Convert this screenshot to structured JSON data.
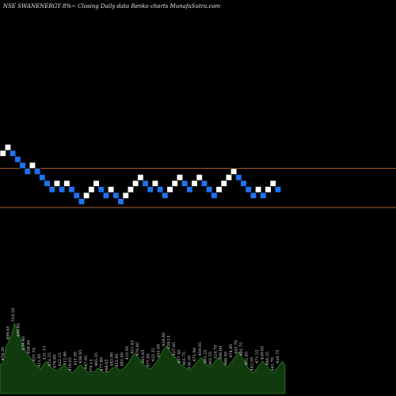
{
  "header": {
    "caption": "NSE SWANENERGY 8%~  Closing Daily data  Renko  charts MunafaSutra.com"
  },
  "colors": {
    "background": "#000000",
    "up_brick": "#ffffff",
    "down_brick": "#1e73f0",
    "brick_outline": "#000000",
    "level_line": "#b4612a",
    "volume_fill": "#123a0f",
    "volume_stroke": "#2fa02a"
  },
  "chart_data": {
    "type": "renko",
    "brick_size_pct": 8,
    "levels": [
      4,
      -2.5
    ],
    "bricks": [
      {
        "dir": "up",
        "level": 6
      },
      {
        "dir": "up",
        "level": 7
      },
      {
        "dir": "down",
        "level": 6
      },
      {
        "dir": "down",
        "level": 5
      },
      {
        "dir": "down",
        "level": 4
      },
      {
        "dir": "down",
        "level": 3
      },
      {
        "dir": "up",
        "level": 4
      },
      {
        "dir": "down",
        "level": 3
      },
      {
        "dir": "down",
        "level": 2
      },
      {
        "dir": "down",
        "level": 1
      },
      {
        "dir": "down",
        "level": 0
      },
      {
        "dir": "up",
        "level": 1
      },
      {
        "dir": "down",
        "level": 0
      },
      {
        "dir": "up",
        "level": 1
      },
      {
        "dir": "down",
        "level": 0
      },
      {
        "dir": "down",
        "level": -1
      },
      {
        "dir": "down",
        "level": -2
      },
      {
        "dir": "up",
        "level": -1
      },
      {
        "dir": "up",
        "level": 0
      },
      {
        "dir": "up",
        "level": 1
      },
      {
        "dir": "down",
        "level": 0
      },
      {
        "dir": "down",
        "level": -1
      },
      {
        "dir": "up",
        "level": 0
      },
      {
        "dir": "down",
        "level": -1
      },
      {
        "dir": "down",
        "level": -2
      },
      {
        "dir": "up",
        "level": -1
      },
      {
        "dir": "up",
        "level": 0
      },
      {
        "dir": "up",
        "level": 1
      },
      {
        "dir": "up",
        "level": 2
      },
      {
        "dir": "down",
        "level": 1
      },
      {
        "dir": "down",
        "level": 0
      },
      {
        "dir": "up",
        "level": 1
      },
      {
        "dir": "down",
        "level": 0
      },
      {
        "dir": "down",
        "level": -1
      },
      {
        "dir": "up",
        "level": 0
      },
      {
        "dir": "up",
        "level": 1
      },
      {
        "dir": "up",
        "level": 2
      },
      {
        "dir": "down",
        "level": 1
      },
      {
        "dir": "down",
        "level": 0
      },
      {
        "dir": "up",
        "level": 1
      },
      {
        "dir": "up",
        "level": 2
      },
      {
        "dir": "down",
        "level": 1
      },
      {
        "dir": "down",
        "level": 0
      },
      {
        "dir": "down",
        "level": -1
      },
      {
        "dir": "up",
        "level": 0
      },
      {
        "dir": "up",
        "level": 1
      },
      {
        "dir": "up",
        "level": 2
      },
      {
        "dir": "up",
        "level": 3
      },
      {
        "dir": "down",
        "level": 2
      },
      {
        "dir": "down",
        "level": 1
      },
      {
        "dir": "down",
        "level": 0
      },
      {
        "dir": "down",
        "level": -1
      },
      {
        "dir": "up",
        "level": 0
      },
      {
        "dir": "down",
        "level": -1
      },
      {
        "dir": "up",
        "level": 0
      },
      {
        "dir": "up",
        "level": 1
      },
      {
        "dir": "down",
        "level": 0
      }
    ],
    "volume": [
      30,
      33,
      48,
      55,
      62,
      74,
      68,
      58,
      52,
      44,
      40,
      36,
      32,
      28,
      26,
      30,
      34,
      30,
      27,
      25,
      24,
      27,
      30,
      28,
      25,
      22,
      24,
      28,
      30,
      27,
      24,
      21,
      20,
      24,
      27,
      25,
      22,
      20,
      24,
      27,
      28,
      26,
      24,
      27,
      30,
      34,
      40,
      42,
      38,
      34,
      30,
      28,
      26,
      28,
      32,
      36,
      42,
      48,
      50,
      45,
      40,
      38,
      34,
      30,
      28,
      26,
      24,
      28,
      32,
      35,
      38,
      34,
      30,
      28,
      31,
      35,
      38,
      34,
      30,
      28,
      32,
      36,
      40,
      44,
      38,
      34,
      28,
      24,
      22,
      26,
      30,
      34,
      32,
      28,
      24,
      22,
      26,
      30,
      34,
      30
    ],
    "volume_labels": [
      "474.30",
      "499.65",
      "514.20",
      "499.65",
      "479.40",
      "458.99",
      "437.70",
      "421.05",
      "431.15",
      "451.55",
      "478.80",
      "422.15",
      "412.80",
      "419.05",
      "411.95",
      "438.95",
      "447.95",
      "476.15",
      "465.35",
      "477.80",
      "448.05",
      "443.90",
      "452.95",
      "481.00",
      "425.95",
      "451.65",
      "476.95",
      "465.65",
      "477.95",
      "432.35",
      "455.00",
      "428.60",
      "439.15",
      "427.05",
      "457.40",
      "461.75",
      "430.50",
      "471.90",
      "459.05",
      "463.25",
      "481.55",
      "524.70",
      "506.00",
      "486.95",
      "474.95",
      "445.70",
      "481.75",
      "462.65",
      "443.20",
      "471.55",
      "459.05",
      "446.25",
      "441.70",
      "426.75"
    ]
  }
}
